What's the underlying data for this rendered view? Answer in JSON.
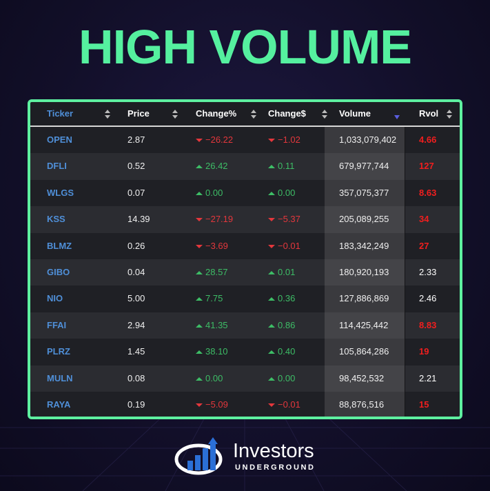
{
  "header": {
    "title": "HIGH VOLUME"
  },
  "table": {
    "columns": [
      "Ticker",
      "Price",
      "Change%",
      "Change$",
      "Volume",
      "Rvol"
    ],
    "sorted_column": 4,
    "rows": [
      [
        "OPEN",
        "2.87",
        "−26.22",
        "−1.02",
        "1,033,079,402",
        "4.66"
      ],
      [
        "DFLI",
        "0.52",
        "26.42",
        "0.11",
        "679,977,744",
        "127"
      ],
      [
        "WLGS",
        "0.07",
        "0.00",
        "0.00",
        "357,075,377",
        "8.63"
      ],
      [
        "KSS",
        "14.39",
        "−27.19",
        "−5.37",
        "205,089,255",
        "34"
      ],
      [
        "BLMZ",
        "0.26",
        "−3.69",
        "−0.01",
        "183,342,249",
        "27"
      ],
      [
        "GIBO",
        "0.04",
        "28.57",
        "0.01",
        "180,920,193",
        "2.33"
      ],
      [
        "NIO",
        "5.00",
        "7.75",
        "0.36",
        "127,886,869",
        "2.46"
      ],
      [
        "FFAI",
        "2.94",
        "41.35",
        "0.86",
        "114,425,442",
        "8.83"
      ],
      [
        "PLRZ",
        "1.45",
        "38.10",
        "0.40",
        "105,864,286",
        "19"
      ],
      [
        "MULN",
        "0.08",
        "0.00",
        "0.00",
        "98,452,532",
        "2.21"
      ],
      [
        "RAYA",
        "0.19",
        "−5.09",
        "−0.01",
        "88,876,516",
        "15"
      ]
    ],
    "rvol_colors": [
      "#f01e1e",
      "#f01e1e",
      "#f01e1e",
      "#f01e1e",
      "#f01e1e",
      "#ffffff",
      "#ffffff",
      "#f01e1e",
      "#f01e1e",
      "#ffffff",
      "#f01e1e"
    ]
  },
  "footer": {
    "brand": "Investors",
    "subbrand": "UNDERGROUND"
  }
}
